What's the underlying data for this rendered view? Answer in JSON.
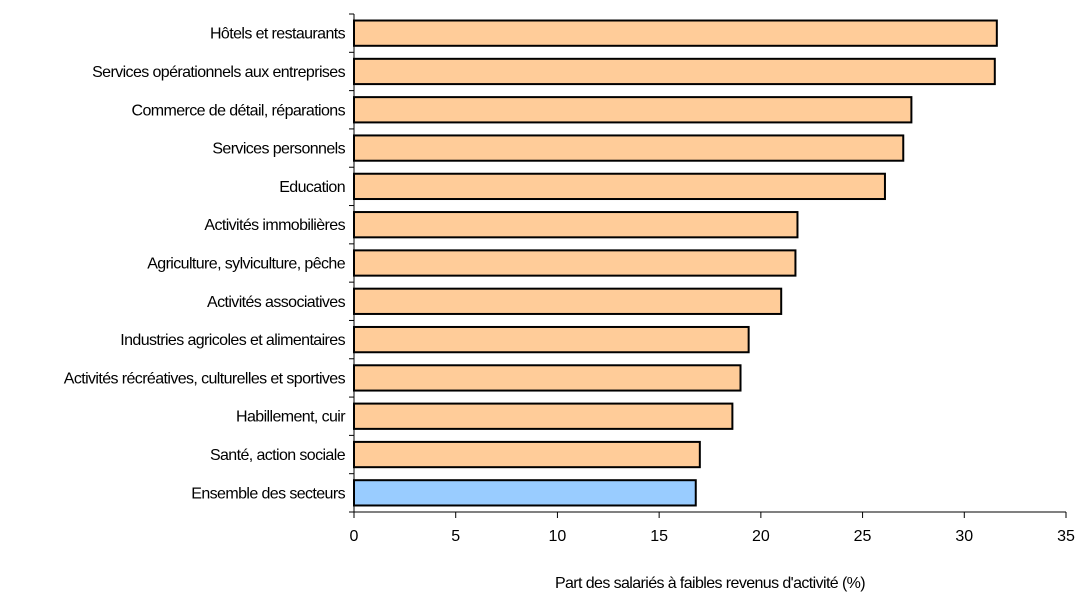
{
  "chart_data": {
    "type": "bar",
    "orientation": "horizontal",
    "categories": [
      "Hôtels et restaurants",
      "Services opérationnels aux entreprises",
      "Commerce de détail, réparations",
      "Services personnels",
      "Education",
      "Activités immobilières",
      "Agriculture, sylviculture, pêche",
      "Activités associatives",
      "Industries agricoles et alimentaires",
      "Activités récréatives, culturelles et sportives",
      "Habillement, cuir",
      "Santé, action sociale",
      "Ensemble des secteurs"
    ],
    "values": [
      31.6,
      31.5,
      27.4,
      27.0,
      26.1,
      21.8,
      21.7,
      21.0,
      19.4,
      19.0,
      18.6,
      17.0,
      16.8
    ],
    "highlight_index": 12,
    "title": "",
    "xlabel": "Part des salariés à faibles revenus d'activité (%)",
    "ylabel": "",
    "xlim": [
      0,
      35
    ],
    "xticks": [
      0,
      5,
      10,
      15,
      20,
      25,
      30,
      35
    ],
    "grid": false,
    "legend": "none",
    "colors": {
      "bar": "#FFCC99",
      "highlight": "#99CCFF",
      "outline": "#000000"
    }
  }
}
